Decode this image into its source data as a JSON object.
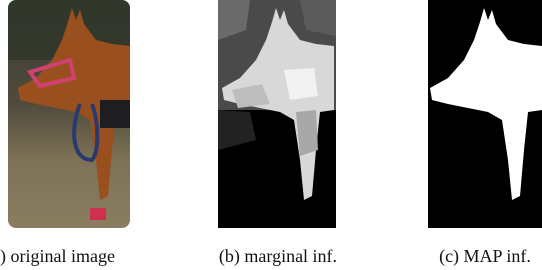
{
  "figure": {
    "panels": [
      {
        "caption": ") original image"
      },
      {
        "caption": "(b) marginal inf."
      },
      {
        "caption": "(c) MAP inf."
      }
    ]
  }
}
